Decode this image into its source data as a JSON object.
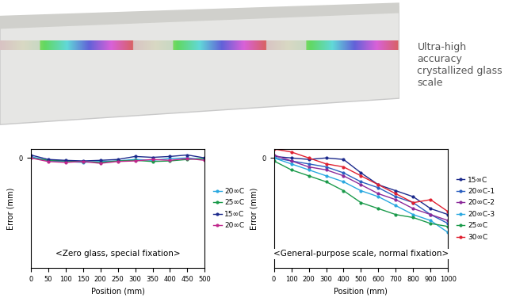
{
  "caption": "Ultra-high accuracy crystallized glass scale",
  "chart_data": [
    {
      "type": "line",
      "annotation": "<Zero glass, special fixation>",
      "x_label": "Position (mm)",
      "y_label": "Error (mm)",
      "x": [
        0,
        50,
        100,
        150,
        200,
        250,
        300,
        350,
        400,
        450,
        500
      ],
      "xlim": [
        0,
        500
      ],
      "xticks": [
        0,
        50,
        100,
        150,
        200,
        250,
        300,
        350,
        400,
        450,
        500
      ],
      "ylim": [
        -3.7,
        0.3
      ],
      "yticks": [
        0
      ],
      "grid": false,
      "legend": "right",
      "marker": "o",
      "series": [
        {
          "name": "20∞C",
          "color": "#29a8e0",
          "values": [
            0.05,
            -0.1,
            -0.12,
            -0.15,
            -0.12,
            -0.1,
            -0.05,
            -0.08,
            -0.02,
            0.0,
            -0.05
          ]
        },
        {
          "name": "25∞C",
          "color": "#1a9a4a",
          "values": [
            0.0,
            -0.08,
            -0.1,
            -0.12,
            -0.15,
            -0.1,
            -0.08,
            -0.12,
            -0.1,
            -0.05,
            -0.02
          ]
        },
        {
          "name": "15∞C",
          "color": "#1c2a8c",
          "values": [
            0.1,
            -0.05,
            -0.08,
            -0.1,
            -0.08,
            -0.05,
            0.05,
            0.02,
            0.05,
            0.1,
            0.0
          ]
        },
        {
          "name": "20∞C",
          "color": "#c0288c",
          "values": [
            0.0,
            -0.12,
            -0.15,
            -0.12,
            -0.18,
            -0.12,
            -0.1,
            -0.05,
            -0.08,
            -0.02,
            -0.08
          ]
        }
      ]
    },
    {
      "type": "line",
      "annotation": "<General-purpose scale, normal fixation>",
      "x_label": "Position (mm)",
      "y_label": "Error (mm)",
      "x": [
        0,
        100,
        200,
        300,
        400,
        500,
        600,
        700,
        800,
        900,
        1000
      ],
      "xlim": [
        0,
        1000
      ],
      "xticks": [
        0,
        100,
        200,
        300,
        400,
        500,
        600,
        700,
        800,
        900,
        1000
      ],
      "ylim": [
        -3.7,
        0.3
      ],
      "yticks": [
        0
      ],
      "grid": false,
      "legend": "right",
      "marker": "o",
      "series": [
        {
          "name": "15∞C",
          "color": "#1c2a8c",
          "values": [
            0.05,
            0.0,
            -0.05,
            0.0,
            -0.05,
            -0.5,
            -0.9,
            -1.1,
            -1.3,
            -1.7,
            -1.9
          ]
        },
        {
          "name": "20∞C-1",
          "color": "#2a5fc0",
          "values": [
            0.0,
            -0.1,
            -0.2,
            -0.3,
            -0.5,
            -0.8,
            -1.0,
            -1.3,
            -1.5,
            -1.9,
            -2.2
          ]
        },
        {
          "name": "20∞C-2",
          "color": "#8c2a9a",
          "values": [
            0.1,
            -0.1,
            -0.3,
            -0.4,
            -0.6,
            -0.9,
            -1.2,
            -1.4,
            -1.7,
            -1.9,
            -2.1
          ]
        },
        {
          "name": "20∞C-3",
          "color": "#29a8e0",
          "values": [
            0.0,
            -0.2,
            -0.4,
            -0.6,
            -0.8,
            -1.1,
            -1.3,
            -1.6,
            -1.9,
            -2.1,
            -2.5
          ]
        },
        {
          "name": "25∞C",
          "color": "#1a9a4a",
          "values": [
            -0.1,
            -0.4,
            -0.6,
            -0.8,
            -1.1,
            -1.5,
            -1.7,
            -1.9,
            -2.0,
            -2.2,
            -2.3
          ]
        },
        {
          "name": "30∞C",
          "color": "#e02030",
          "values": [
            0.3,
            0.2,
            0.0,
            -0.2,
            -0.3,
            -0.6,
            -0.9,
            -1.2,
            -1.5,
            -1.4,
            -1.8
          ]
        }
      ]
    }
  ]
}
